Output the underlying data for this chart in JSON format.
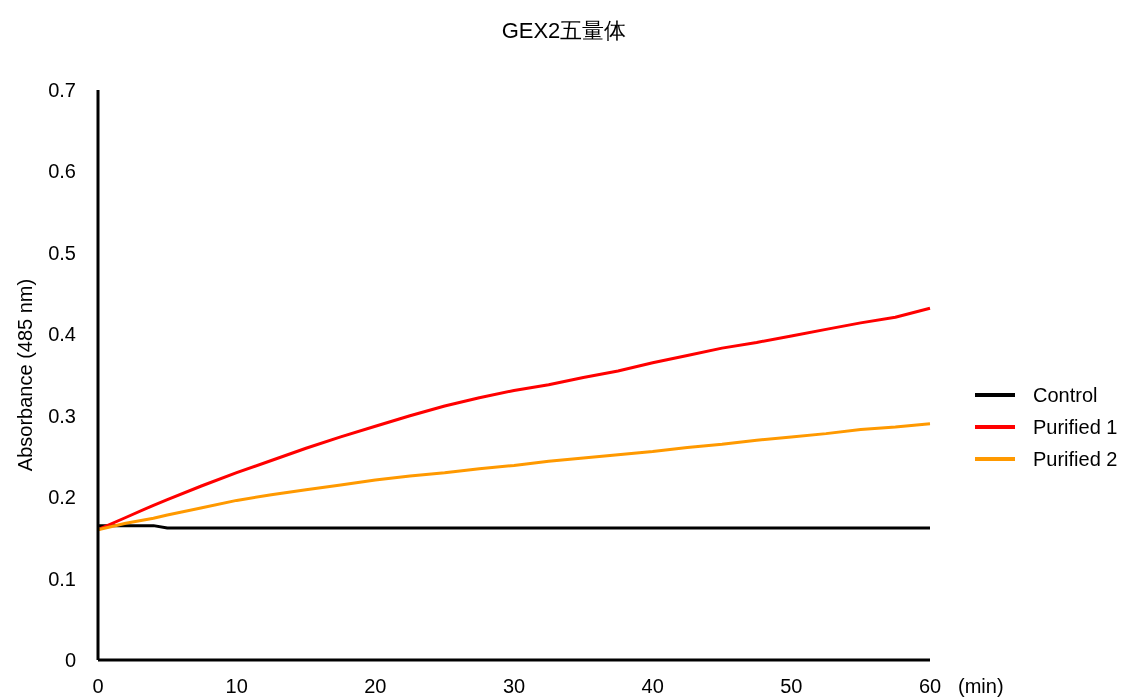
{
  "chart_data": {
    "type": "line",
    "title": "GEX2五量体",
    "xlabel": "(min)",
    "ylabel": "Absorbance (485 nm)",
    "xlim": [
      0,
      60
    ],
    "xticks": [
      0,
      10,
      20,
      30,
      40,
      50,
      60
    ],
    "ylim": [
      0,
      0.7
    ],
    "yticks": [
      0,
      0.1,
      0.2,
      0.3,
      0.4,
      0.5,
      0.6,
      0.7
    ],
    "grid": false,
    "legend": "right",
    "marker": "none",
    "line_style": "solid",
    "x": [
      0,
      2,
      4,
      5,
      7.5,
      10,
      12.5,
      15,
      17.5,
      20,
      22.5,
      25,
      27.5,
      30,
      32.5,
      35,
      37.5,
      40,
      42.5,
      45,
      47.5,
      50,
      52.5,
      55,
      57.5,
      60
    ],
    "series": [
      {
        "name": "Control",
        "color": "#000000",
        "values": [
          0.165,
          0.165,
          0.165,
          0.162,
          0.162,
          0.162,
          0.162,
          0.162,
          0.162,
          0.162,
          0.162,
          0.162,
          0.162,
          0.162,
          0.162,
          0.162,
          0.162,
          0.162,
          0.162,
          0.162,
          0.162,
          0.162,
          0.162,
          0.162,
          0.162,
          0.162
        ]
      },
      {
        "name": "Purified 1",
        "color": "#ff0000",
        "values": [
          0.16,
          0.175,
          0.19,
          0.197,
          0.214,
          0.23,
          0.245,
          0.26,
          0.274,
          0.287,
          0.3,
          0.312,
          0.322,
          0.331,
          0.338,
          0.347,
          0.355,
          0.365,
          0.374,
          0.383,
          0.39,
          0.398,
          0.406,
          0.414,
          0.421,
          0.432
        ]
      },
      {
        "name": "Purified 2",
        "color": "#ff9900",
        "values": [
          0.16,
          0.168,
          0.174,
          0.178,
          0.187,
          0.196,
          0.203,
          0.209,
          0.215,
          0.221,
          0.226,
          0.23,
          0.235,
          0.239,
          0.244,
          0.248,
          0.252,
          0.256,
          0.261,
          0.265,
          0.27,
          0.274,
          0.278,
          0.283,
          0.286,
          0.29
        ]
      }
    ]
  }
}
